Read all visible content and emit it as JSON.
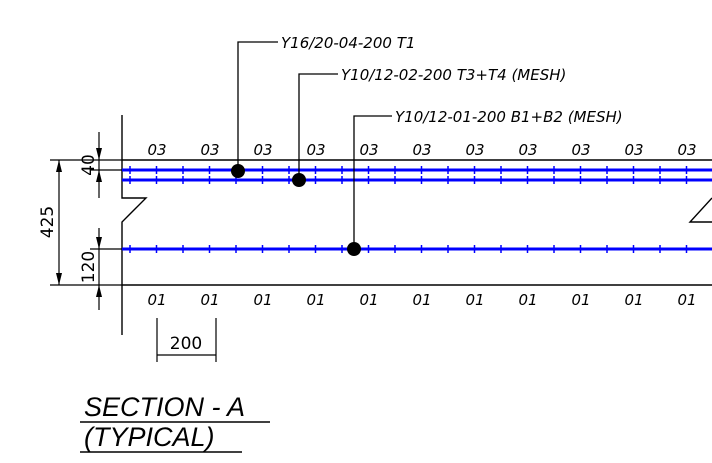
{
  "callouts": [
    {
      "text": "Y16/20-04-200  T1"
    },
    {
      "text": "Y10/12-02-200  T3+T4  (MESH)"
    },
    {
      "text": "Y10/12-01-200  B1+B2  (MESH)"
    }
  ],
  "top_bar_mark": "03",
  "bottom_bar_mark": "01",
  "dimensions": {
    "overall": "425",
    "top_cover": "40",
    "bottom_cover": "120",
    "spacing": "200"
  },
  "title": {
    "line1": "SECTION - A",
    "line2": "(TYPICAL)"
  },
  "colors": {
    "rebar": "#0000ff",
    "line": "#000000"
  }
}
